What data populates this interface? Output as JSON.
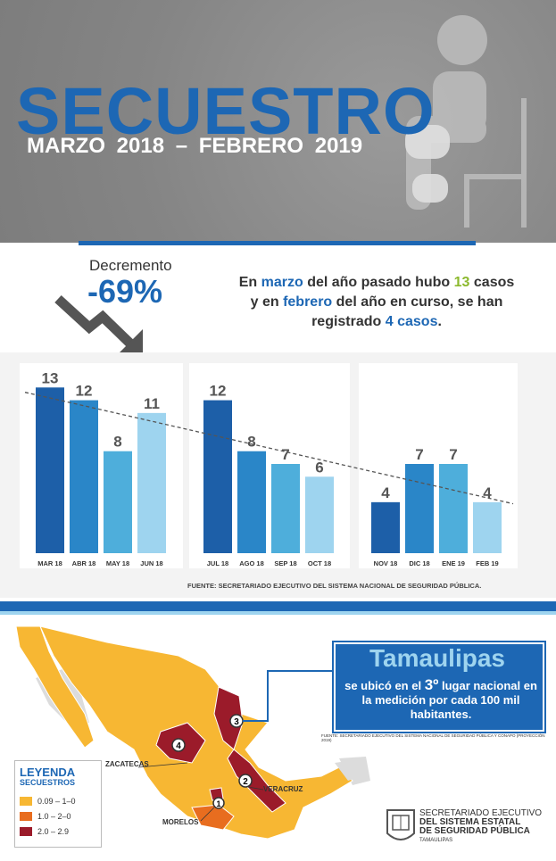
{
  "header": {
    "title": "SECUESTRO",
    "subtitle": "MARZO 2018  – FEBRERO 2019"
  },
  "decrease": {
    "label": "Decremento",
    "value": "-69%"
  },
  "summary": {
    "p1": "En ",
    "p2": "marzo",
    "p3": " del año pasado hubo ",
    "p4": "13",
    "p5": " casos y en ",
    "p6": "febrero",
    "p7": " del año en curso, se han registrado ",
    "p8": "4 casos",
    "p9": "."
  },
  "chart_data": {
    "type": "bar",
    "categories": [
      "MAR 18",
      "ABR 18",
      "MAY 18",
      "JUN 18",
      "JUL 18",
      "AGO 18",
      "SEP 18",
      "OCT 18",
      "NOV 18",
      "DIC 18",
      "ENE 19",
      "FEB 19"
    ],
    "values": [
      13,
      12,
      8,
      11,
      12,
      8,
      7,
      6,
      4,
      7,
      7,
      4
    ],
    "ylim": [
      0,
      14
    ],
    "trendline": true,
    "colors": [
      "#1d5fa8",
      "#2a86c8",
      "#4eaedb",
      "#9ed4ef"
    ]
  },
  "source": "FUENTE: SECRETARIADO EJECUTIVO DEL SISTEMA NACIONAL DE SEGURIDAD PÚBLICA.",
  "tamaulipas": {
    "title": "Tamaulipas",
    "text1": "se ubicó en el ",
    "rank": "3º",
    "text2": " lugar nacional en la medición por cada 100 mil habitantes.",
    "source": "FUENTE: SECRETARIADO EJECUTIVO DEL SISTEMA NACIONAL DE SEGURIDAD PÚBLICA Y CONAPO (PROYECCIÓN 2019)"
  },
  "legend": {
    "title": "LEYENDA",
    "subtitle": "SECUESTROS",
    "items": [
      {
        "label": "0.09 – 1–0",
        "color": "#f7b733"
      },
      {
        "label": "1.0 – 2–0",
        "color": "#e86d1f"
      },
      {
        "label": "2.0 – 2.9",
        "color": "#9b1b2a"
      }
    ]
  },
  "map_labels": {
    "zacatecas": "ZACATECAS",
    "veracruz": "VERACRUZ",
    "morelos": "MORELOS",
    "r1": "1",
    "r2": "2",
    "r3": "3",
    "r4": "4"
  },
  "logo": {
    "line1": "SECRETARIADO EJECUTIVO",
    "line2": "DEL SISTEMA ESTATAL",
    "line3": "DE SEGURIDAD PÚBLICA",
    "line4": "TAMAULIPAS"
  }
}
